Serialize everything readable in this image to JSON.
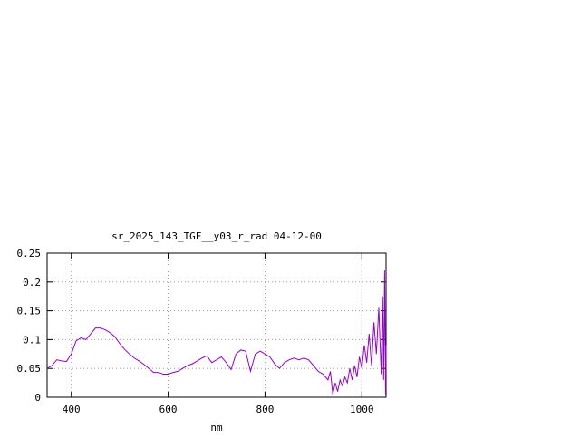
{
  "chart_data": {
    "type": "line",
    "title": "sr_2025_143_TGF__y03_r_rad 04-12-00",
    "x_label": "nm",
    "xlim": [
      350,
      1050
    ],
    "ylim": [
      0,
      0.25
    ],
    "xticks": [
      400,
      600,
      800,
      1000
    ],
    "yticks": [
      0,
      0.05,
      0.1,
      0.15,
      0.2,
      0.25
    ],
    "grid": true,
    "series": [
      {
        "color": "#9400d3",
        "x": [
          350,
          360,
          370,
          380,
          390,
          400,
          410,
          420,
          430,
          440,
          450,
          460,
          470,
          480,
          490,
          500,
          510,
          520,
          530,
          540,
          550,
          560,
          570,
          580,
          590,
          600,
          610,
          620,
          630,
          640,
          650,
          660,
          670,
          680,
          690,
          700,
          710,
          720,
          730,
          740,
          750,
          760,
          770,
          780,
          790,
          800,
          810,
          820,
          830,
          840,
          850,
          860,
          870,
          880,
          890,
          900,
          910,
          920,
          930,
          935,
          940,
          945,
          950,
          955,
          960,
          965,
          970,
          975,
          980,
          985,
          990,
          995,
          1000,
          1005,
          1010,
          1015,
          1020,
          1025,
          1030,
          1035,
          1040,
          1043,
          1045,
          1047,
          1049,
          1050
        ],
        "values": [
          0.05,
          0.055,
          0.065,
          0.063,
          0.062,
          0.075,
          0.098,
          0.103,
          0.1,
          0.11,
          0.12,
          0.12,
          0.117,
          0.112,
          0.105,
          0.093,
          0.083,
          0.075,
          0.068,
          0.063,
          0.057,
          0.05,
          0.043,
          0.043,
          0.04,
          0.04,
          0.043,
          0.045,
          0.05,
          0.055,
          0.058,
          0.063,
          0.068,
          0.072,
          0.06,
          0.065,
          0.07,
          0.06,
          0.048,
          0.075,
          0.082,
          0.08,
          0.045,
          0.075,
          0.08,
          0.075,
          0.07,
          0.058,
          0.05,
          0.06,
          0.065,
          0.068,
          0.065,
          0.068,
          0.065,
          0.055,
          0.045,
          0.04,
          0.03,
          0.045,
          0.005,
          0.025,
          0.01,
          0.03,
          0.02,
          0.035,
          0.025,
          0.05,
          0.03,
          0.055,
          0.035,
          0.07,
          0.05,
          0.09,
          0.06,
          0.11,
          0.055,
          0.13,
          0.075,
          0.155,
          0.04,
          0.175,
          0.03,
          0.22,
          0.005,
          0.09
        ]
      }
    ]
  }
}
